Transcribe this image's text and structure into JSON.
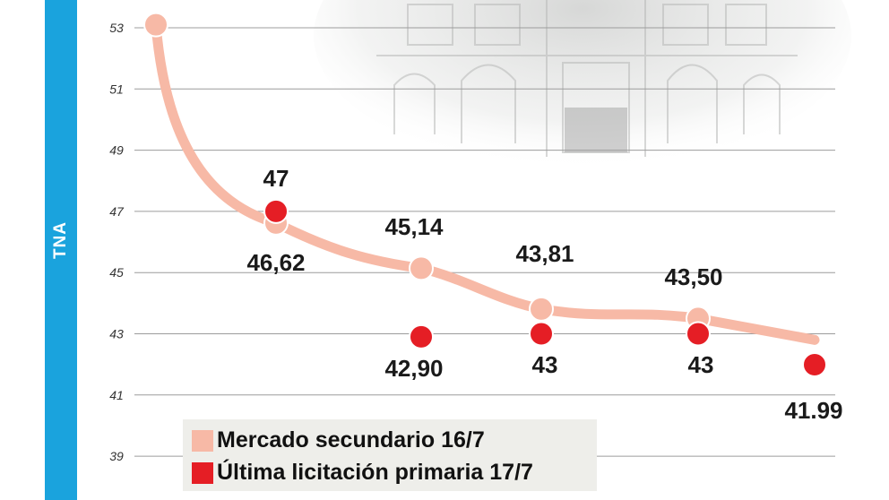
{
  "axis": {
    "title": "TNA",
    "ticks": [
      39,
      41,
      43,
      45,
      47,
      49,
      51,
      53
    ]
  },
  "chart_data": {
    "type": "line",
    "ylabel": "TNA",
    "ylim": [
      38,
      54
    ],
    "grid": true,
    "series": [
      {
        "name": "Mercado secundario 16/7",
        "color": "#f7b9a6",
        "marker_values": [
          53.1,
          46.62,
          45.14,
          43.81,
          43.5
        ],
        "labels": [
          "",
          "46,62",
          "45,14",
          "43,81",
          "43,50"
        ],
        "end_value": 42.8
      },
      {
        "name": "Última licitación primaria 17/7",
        "color": "#e51e25",
        "values": [
          null,
          47.0,
          42.9,
          43.0,
          43.0,
          41.99
        ],
        "labels": [
          "",
          "47",
          "42,90",
          "43",
          "43",
          "41.99"
        ]
      }
    ]
  },
  "legend": {
    "secondary_label": "Mercado secundario 16/7",
    "primary_label": "Última licitación primaria 17/7"
  }
}
